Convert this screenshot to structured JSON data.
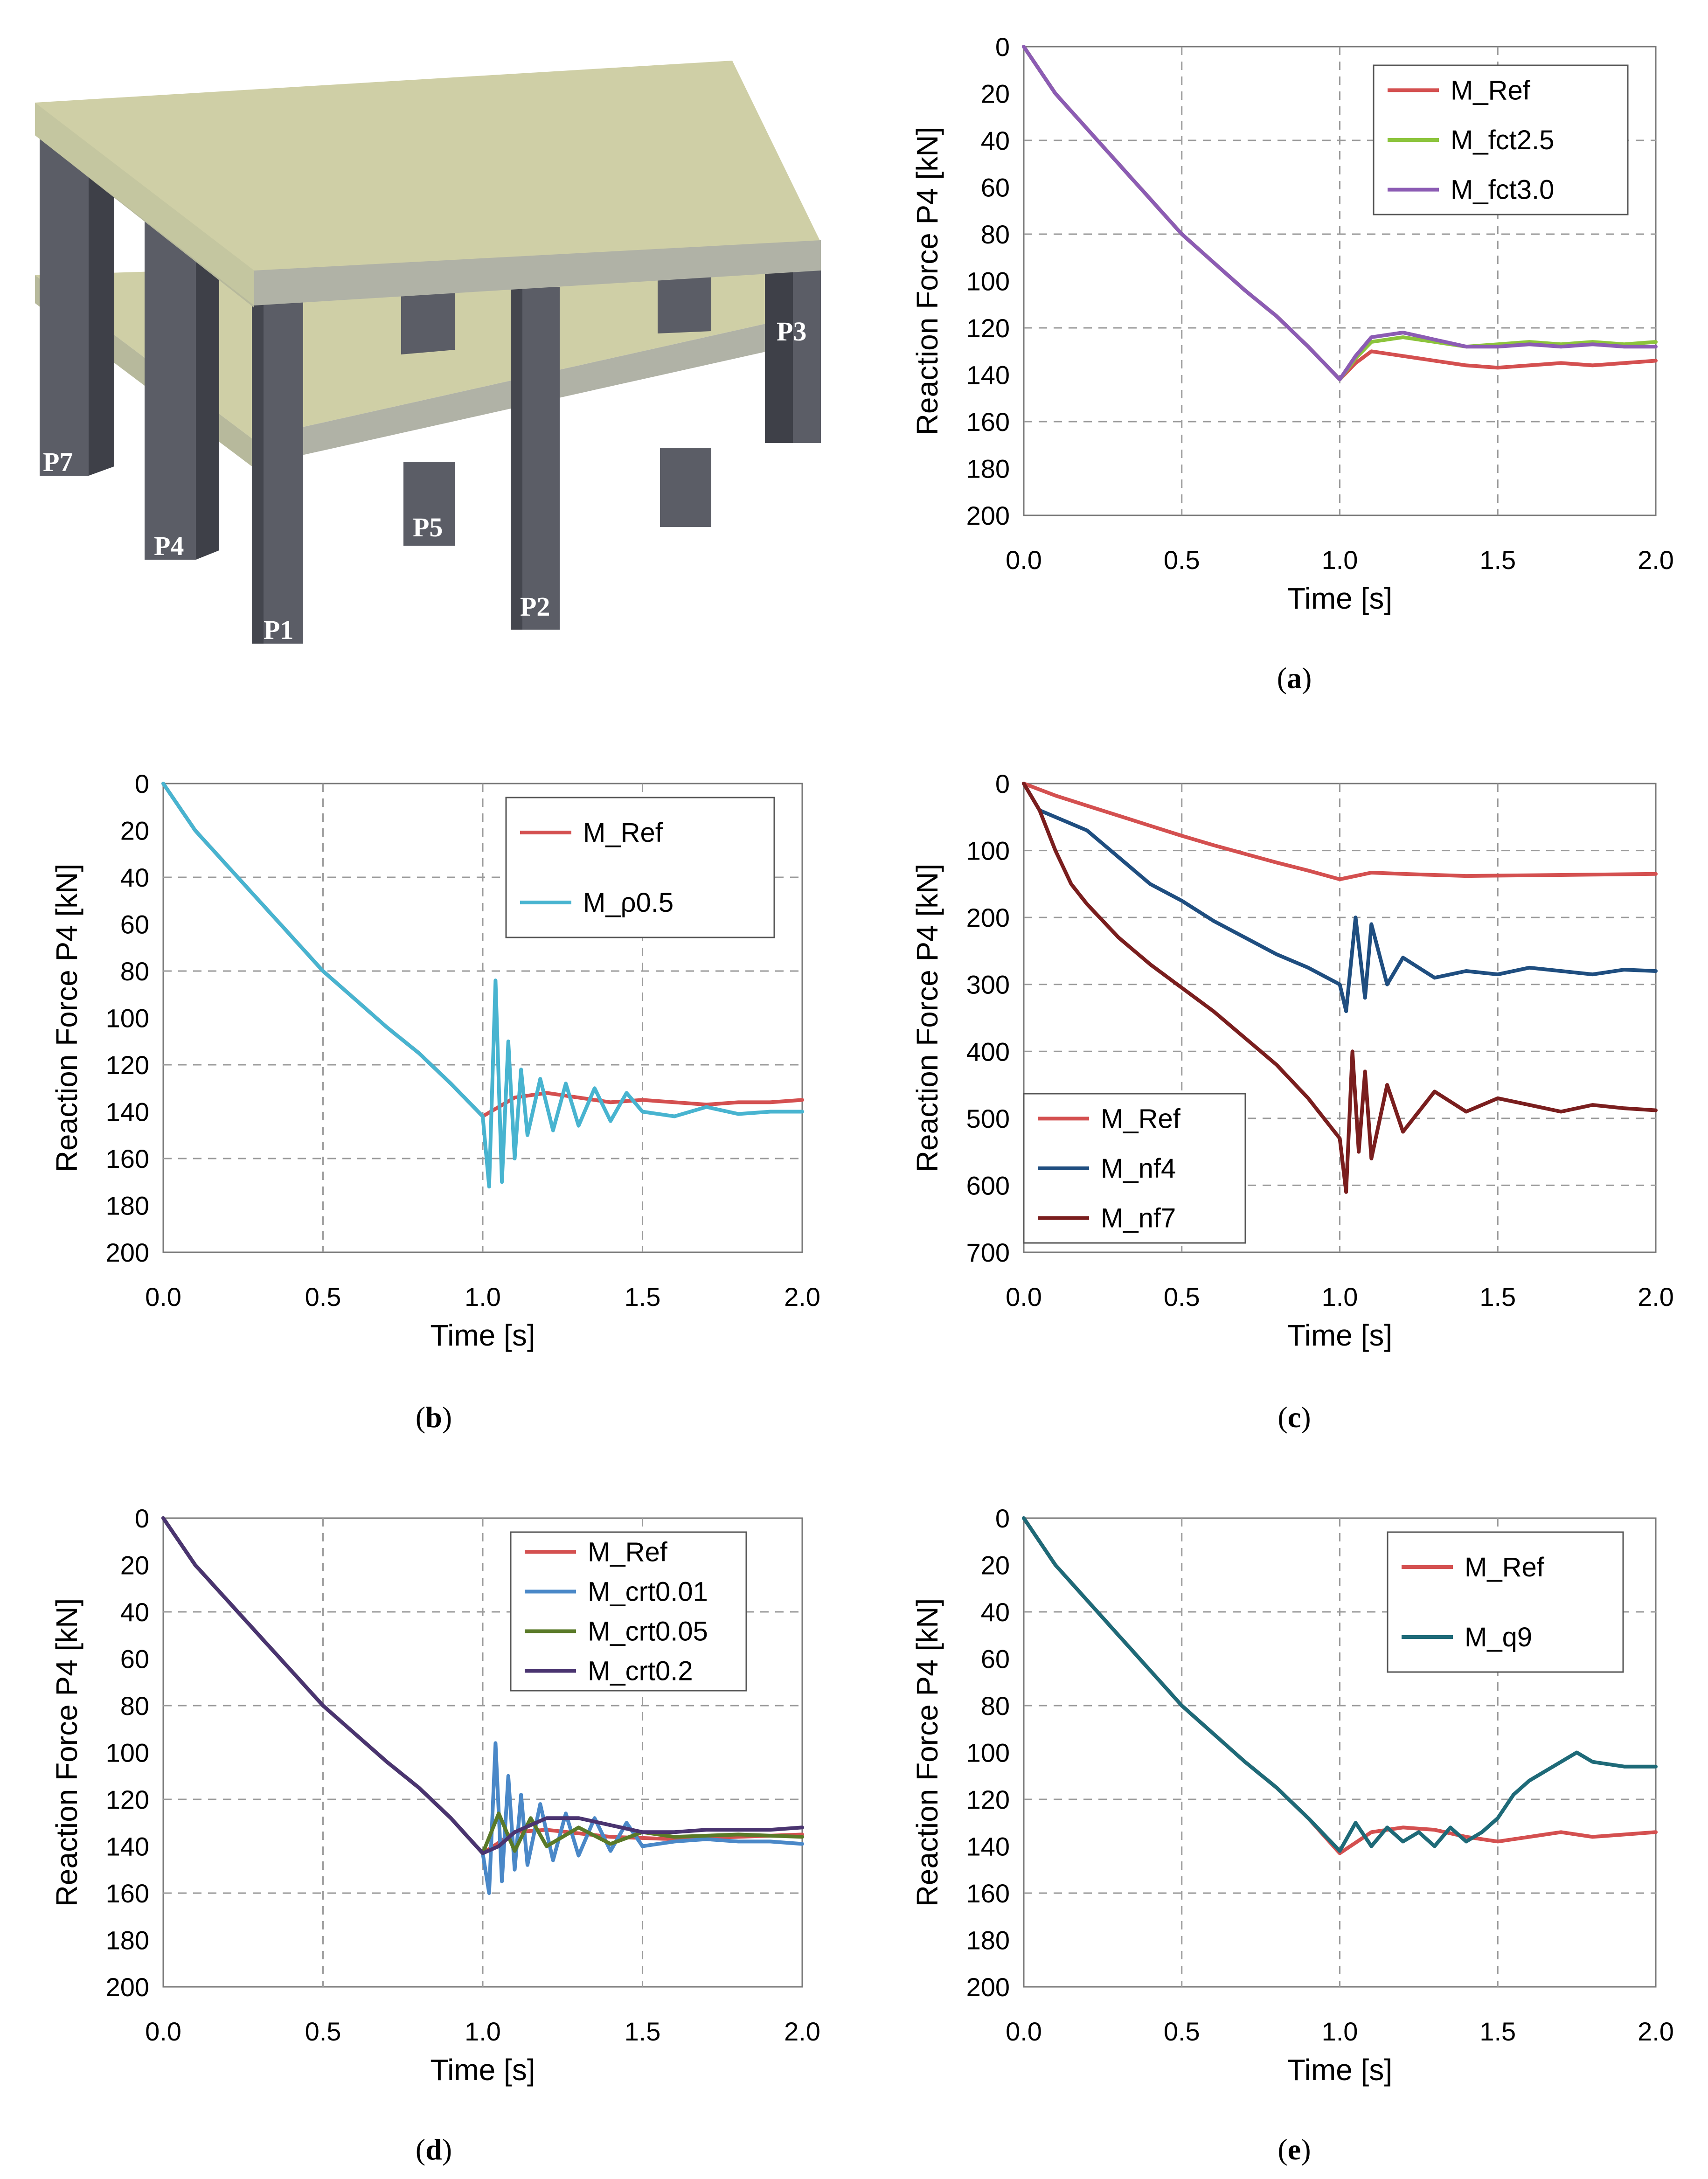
{
  "colors": {
    "M_Ref": "#d45050",
    "M_fct2.5": "#8cc43c",
    "M_fct3.0": "#8c5cb4",
    "M_rho0.5": "#48b4d0",
    "M_nf4": "#1f4e80",
    "M_nf7": "#7a1e1e",
    "M_crt0.01": "#4a88c8",
    "M_crt0.05": "#5a7a28",
    "M_crt0.2": "#4a3470",
    "M_q9": "#1e6a78",
    "slab": "#cfcfa6",
    "slab_edge": "#b0b2a6",
    "column": "#5b5d66"
  },
  "structure": {
    "columns": [
      "P7",
      "P4",
      "P1",
      "P5",
      "P2",
      "P3"
    ]
  },
  "chart_data": [
    {
      "id": "a",
      "type": "line",
      "caption_letter": "a",
      "xlabel": "Time [s]",
      "ylabel": "Reaction Force P4 [kN]",
      "xlim": [
        0,
        2
      ],
      "ylim": [
        0,
        200
      ],
      "y_inverted": true,
      "xticks": [
        "0.0",
        "0.5",
        "1.0",
        "1.5",
        "2.0"
      ],
      "yticks": [
        "0",
        "20",
        "40",
        "60",
        "80",
        "100",
        "120",
        "140",
        "160",
        "180",
        "200"
      ],
      "legend": [
        "M_Ref",
        "M_fct2.5",
        "M_fct3.0"
      ],
      "legend_position": "top-right",
      "series": [
        {
          "name": "M_Ref",
          "color": "#d45050",
          "x": [
            0,
            0.1,
            0.2,
            0.3,
            0.4,
            0.5,
            0.6,
            0.7,
            0.8,
            0.9,
            1.0,
            1.05,
            1.1,
            1.2,
            1.3,
            1.4,
            1.5,
            1.6,
            1.7,
            1.8,
            1.9,
            2.0
          ],
          "y": [
            0,
            20,
            35,
            50,
            65,
            80,
            92,
            104,
            115,
            128,
            142,
            135,
            130,
            132,
            134,
            136,
            137,
            136,
            135,
            136,
            135,
            134
          ]
        },
        {
          "name": "M_fct2.5",
          "color": "#8cc43c",
          "x": [
            0,
            0.1,
            0.2,
            0.3,
            0.4,
            0.5,
            0.6,
            0.7,
            0.8,
            0.9,
            1.0,
            1.05,
            1.1,
            1.2,
            1.3,
            1.4,
            1.5,
            1.6,
            1.7,
            1.8,
            1.9,
            2.0
          ],
          "y": [
            0,
            20,
            35,
            50,
            65,
            80,
            92,
            104,
            115,
            128,
            142,
            133,
            126,
            124,
            126,
            128,
            127,
            126,
            127,
            126,
            127,
            126
          ]
        },
        {
          "name": "M_fct3.0",
          "color": "#8c5cb4",
          "x": [
            0,
            0.1,
            0.2,
            0.3,
            0.4,
            0.5,
            0.6,
            0.7,
            0.8,
            0.9,
            1.0,
            1.05,
            1.1,
            1.2,
            1.3,
            1.4,
            1.5,
            1.6,
            1.7,
            1.8,
            1.9,
            2.0
          ],
          "y": [
            0,
            20,
            35,
            50,
            65,
            80,
            92,
            104,
            115,
            128,
            142,
            132,
            124,
            122,
            125,
            128,
            128,
            127,
            128,
            127,
            128,
            128
          ]
        }
      ]
    },
    {
      "id": "b",
      "type": "line",
      "caption_letter": "b",
      "xlabel": "Time [s]",
      "ylabel": "Reaction Force P4 [kN]",
      "xlim": [
        0,
        2
      ],
      "ylim": [
        0,
        200
      ],
      "y_inverted": true,
      "xticks": [
        "0.0",
        "0.5",
        "1.0",
        "1.5",
        "2.0"
      ],
      "yticks": [
        "0",
        "20",
        "40",
        "60",
        "80",
        "100",
        "120",
        "140",
        "160",
        "180",
        "200"
      ],
      "legend": [
        "M_Ref",
        "M_ρ0.5"
      ],
      "legend_position": "top-right",
      "series": [
        {
          "name": "M_Ref",
          "color": "#d45050",
          "x": [
            0,
            0.1,
            0.2,
            0.3,
            0.4,
            0.5,
            0.6,
            0.7,
            0.8,
            0.9,
            1.0,
            1.1,
            1.2,
            1.3,
            1.4,
            1.5,
            1.6,
            1.7,
            1.8,
            1.9,
            2.0
          ],
          "y": [
            0,
            20,
            35,
            50,
            65,
            80,
            92,
            104,
            115,
            128,
            142,
            134,
            132,
            134,
            136,
            135,
            136,
            137,
            136,
            136,
            135
          ]
        },
        {
          "name": "M_ρ0.5",
          "color": "#48b4d0",
          "x": [
            0,
            0.1,
            0.2,
            0.3,
            0.4,
            0.5,
            0.6,
            0.7,
            0.8,
            0.9,
            1.0,
            1.02,
            1.04,
            1.06,
            1.08,
            1.1,
            1.12,
            1.14,
            1.18,
            1.22,
            1.26,
            1.3,
            1.35,
            1.4,
            1.45,
            1.5,
            1.6,
            1.7,
            1.8,
            1.9,
            2.0
          ],
          "y": [
            0,
            20,
            35,
            50,
            65,
            80,
            92,
            104,
            115,
            128,
            142,
            172,
            84,
            170,
            110,
            160,
            122,
            150,
            126,
            148,
            128,
            146,
            130,
            144,
            132,
            140,
            142,
            138,
            141,
            140,
            140
          ]
        }
      ]
    },
    {
      "id": "c",
      "type": "line",
      "caption_letter": "c",
      "xlabel": "Time [s]",
      "ylabel": "Reaction Force P4 [kN]",
      "xlim": [
        0,
        2
      ],
      "ylim": [
        0,
        700
      ],
      "y_inverted": true,
      "xticks": [
        "0.0",
        "0.5",
        "1.0",
        "1.5",
        "2.0"
      ],
      "yticks": [
        "0",
        "100",
        "200",
        "300",
        "400",
        "500",
        "600",
        "700"
      ],
      "legend": [
        "M_Ref",
        "M_nf4",
        "M_nf7"
      ],
      "legend_position": "bottom-left",
      "series": [
        {
          "name": "M_Ref",
          "color": "#d45050",
          "x": [
            0,
            0.1,
            0.2,
            0.3,
            0.4,
            0.5,
            0.6,
            0.7,
            0.8,
            0.9,
            1.0,
            1.1,
            1.2,
            1.4,
            1.6,
            1.8,
            2.0
          ],
          "y": [
            0,
            18,
            33,
            48,
            63,
            78,
            92,
            105,
            118,
            130,
            143,
            133,
            135,
            138,
            137,
            136,
            135
          ]
        },
        {
          "name": "M_nf4",
          "color": "#1f4e80",
          "x": [
            0,
            0.05,
            0.1,
            0.2,
            0.3,
            0.4,
            0.5,
            0.6,
            0.7,
            0.8,
            0.9,
            1.0,
            1.02,
            1.05,
            1.08,
            1.1,
            1.15,
            1.2,
            1.3,
            1.4,
            1.5,
            1.6,
            1.7,
            1.8,
            1.9,
            2.0
          ],
          "y": [
            0,
            40,
            50,
            70,
            110,
            150,
            175,
            205,
            230,
            255,
            275,
            300,
            340,
            200,
            320,
            210,
            300,
            260,
            290,
            280,
            285,
            275,
            280,
            285,
            278,
            280
          ]
        },
        {
          "name": "M_nf7",
          "color": "#7a1e1e",
          "x": [
            0,
            0.05,
            0.1,
            0.15,
            0.2,
            0.3,
            0.4,
            0.5,
            0.6,
            0.7,
            0.8,
            0.9,
            1.0,
            1.02,
            1.04,
            1.06,
            1.08,
            1.1,
            1.15,
            1.2,
            1.3,
            1.4,
            1.5,
            1.6,
            1.7,
            1.8,
            1.9,
            2.0
          ],
          "y": [
            0,
            40,
            100,
            150,
            180,
            230,
            270,
            305,
            340,
            380,
            420,
            470,
            530,
            610,
            400,
            550,
            430,
            560,
            450,
            520,
            460,
            490,
            470,
            480,
            490,
            480,
            485,
            488
          ]
        }
      ]
    },
    {
      "id": "d",
      "type": "line",
      "caption_letter": "d",
      "xlabel": "Time [s]",
      "ylabel": "Reaction Force P4 [kN]",
      "xlim": [
        0,
        2
      ],
      "ylim": [
        0,
        200
      ],
      "y_inverted": true,
      "xticks": [
        "0.0",
        "0.5",
        "1.0",
        "1.5",
        "2.0"
      ],
      "yticks": [
        "0",
        "20",
        "40",
        "60",
        "80",
        "100",
        "120",
        "140",
        "160",
        "180",
        "200"
      ],
      "legend": [
        "M_Ref",
        "M_crt0.01",
        "M_crt0.05",
        "M_crt0.2"
      ],
      "legend_position": "top-right",
      "series": [
        {
          "name": "M_Ref",
          "color": "#d45050",
          "x": [
            0,
            0.1,
            0.2,
            0.3,
            0.4,
            0.5,
            0.6,
            0.7,
            0.8,
            0.9,
            1.0,
            1.1,
            1.2,
            1.4,
            1.6,
            1.8,
            2.0
          ],
          "y": [
            0,
            20,
            35,
            50,
            65,
            80,
            92,
            104,
            115,
            128,
            143,
            134,
            133,
            136,
            137,
            136,
            135
          ]
        },
        {
          "name": "M_crt0.01",
          "color": "#4a88c8",
          "x": [
            0,
            0.1,
            0.2,
            0.3,
            0.4,
            0.5,
            0.6,
            0.7,
            0.8,
            0.9,
            1.0,
            1.02,
            1.04,
            1.06,
            1.08,
            1.1,
            1.12,
            1.14,
            1.18,
            1.22,
            1.26,
            1.3,
            1.35,
            1.4,
            1.45,
            1.5,
            1.6,
            1.7,
            1.8,
            1.9,
            2.0
          ],
          "y": [
            0,
            20,
            35,
            50,
            65,
            80,
            92,
            104,
            115,
            128,
            143,
            160,
            96,
            155,
            110,
            150,
            118,
            148,
            122,
            146,
            126,
            144,
            128,
            142,
            130,
            140,
            138,
            137,
            138,
            138,
            139
          ]
        },
        {
          "name": "M_crt0.05",
          "color": "#5a7a28",
          "x": [
            0,
            0.1,
            0.2,
            0.3,
            0.4,
            0.5,
            0.6,
            0.7,
            0.8,
            0.9,
            1.0,
            1.05,
            1.1,
            1.15,
            1.2,
            1.3,
            1.4,
            1.5,
            1.6,
            1.8,
            2.0
          ],
          "y": [
            0,
            20,
            35,
            50,
            65,
            80,
            92,
            104,
            115,
            128,
            143,
            126,
            142,
            128,
            140,
            132,
            139,
            134,
            136,
            135,
            136
          ]
        },
        {
          "name": "M_crt0.2",
          "color": "#4a3470",
          "x": [
            0,
            0.1,
            0.2,
            0.3,
            0.4,
            0.5,
            0.6,
            0.7,
            0.8,
            0.9,
            1.0,
            1.05,
            1.1,
            1.2,
            1.3,
            1.4,
            1.5,
            1.6,
            1.7,
            1.8,
            1.9,
            2.0
          ],
          "y": [
            0,
            20,
            35,
            50,
            65,
            80,
            92,
            104,
            115,
            128,
            143,
            140,
            134,
            128,
            128,
            131,
            134,
            134,
            133,
            133,
            133,
            132
          ]
        }
      ]
    },
    {
      "id": "e",
      "type": "line",
      "caption_letter": "e",
      "xlabel": "Time [s]",
      "ylabel": "Reaction Force P4 [kN]",
      "xlim": [
        0,
        2
      ],
      "ylim": [
        0,
        200
      ],
      "y_inverted": true,
      "xticks": [
        "0.0",
        "0.5",
        "1.0",
        "1.5",
        "2.0"
      ],
      "yticks": [
        "0",
        "20",
        "40",
        "60",
        "80",
        "100",
        "120",
        "140",
        "160",
        "180",
        "200"
      ],
      "legend": [
        "M_Ref",
        "M_q9"
      ],
      "legend_position": "top-right",
      "series": [
        {
          "name": "M_Ref",
          "color": "#d45050",
          "x": [
            0,
            0.1,
            0.2,
            0.3,
            0.4,
            0.5,
            0.6,
            0.7,
            0.8,
            0.9,
            1.0,
            1.1,
            1.2,
            1.3,
            1.4,
            1.5,
            1.6,
            1.7,
            1.8,
            1.9,
            2.0
          ],
          "y": [
            0,
            20,
            35,
            50,
            65,
            80,
            92,
            104,
            115,
            128,
            143,
            134,
            132,
            133,
            136,
            138,
            136,
            134,
            136,
            135,
            134
          ]
        },
        {
          "name": "M_q9",
          "color": "#1e6a78",
          "x": [
            0,
            0.1,
            0.2,
            0.3,
            0.4,
            0.5,
            0.6,
            0.7,
            0.8,
            0.9,
            1.0,
            1.05,
            1.1,
            1.15,
            1.2,
            1.25,
            1.3,
            1.35,
            1.4,
            1.45,
            1.5,
            1.55,
            1.6,
            1.65,
            1.7,
            1.75,
            1.8,
            1.9,
            2.0
          ],
          "y": [
            0,
            20,
            35,
            50,
            65,
            80,
            92,
            104,
            115,
            128,
            142,
            130,
            140,
            132,
            138,
            134,
            140,
            132,
            138,
            134,
            128,
            118,
            112,
            108,
            104,
            100,
            104,
            106,
            106
          ]
        }
      ]
    }
  ]
}
